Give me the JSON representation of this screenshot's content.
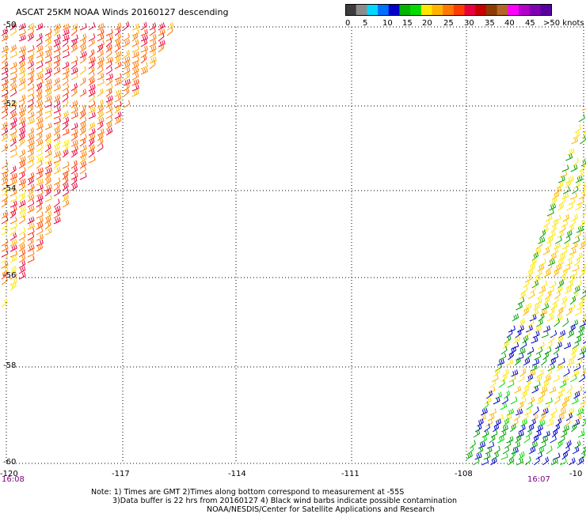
{
  "title": "ASCAT 25KM NOAA Winds 20160127 descending",
  "legend": {
    "labels": [
      "0",
      "5",
      "10",
      "15",
      "20",
      "25",
      "30",
      "35",
      "40",
      "45",
      ">50 knots"
    ],
    "colors": [
      "#3c3c3c",
      "#8c8c8c",
      "#00d8ff",
      "#0070ff",
      "#0000c8",
      "#00b400",
      "#00dc00",
      "#ffe600",
      "#ffb400",
      "#ff7800",
      "#ff3c00",
      "#e6003c",
      "#c80000",
      "#8c3c00",
      "#b46428",
      "#ff00ff",
      "#b400c8",
      "#8200b4",
      "#5a00a0"
    ]
  },
  "map": {
    "lat_labels": [
      "-50",
      "-52",
      "-54",
      "-56",
      "-58",
      "-60"
    ],
    "lon_labels": [
      "-120",
      "-117",
      "-114",
      "-111",
      "-108",
      "-10"
    ],
    "times": [
      "16:08",
      "16:07"
    ]
  },
  "notes": [
    "Note: 1) Times are GMT 2)Times along bottom correspond to measurement at -55S",
    "3)Data buffer is 22 hrs from 20160127 4) Black wind barbs indicate possible contamination",
    "NOAA/NESDIS/Center for Satellite Applications and Research"
  ]
}
